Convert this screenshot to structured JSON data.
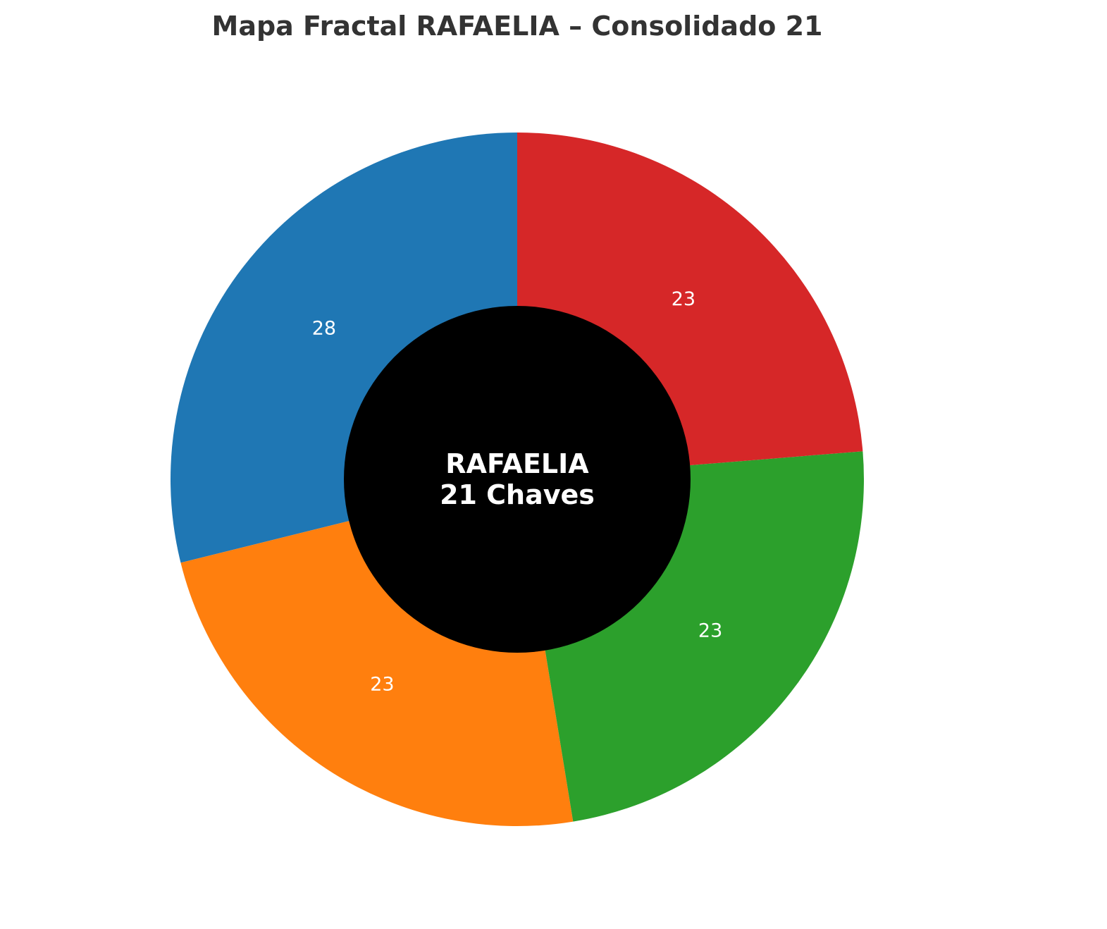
{
  "chart_data": {
    "type": "pie",
    "title": "Mapa Fractal RAFAELIA – Consolidado 21",
    "start_angle_deg": 90,
    "direction": "counterclockwise",
    "donut": true,
    "slices": [
      {
        "value": 28,
        "label": "28",
        "color": "#1f77b4"
      },
      {
        "value": 23,
        "label": "23",
        "color": "#ff7f0e"
      },
      {
        "value": 23,
        "label": "23",
        "color": "#2ca02c"
      },
      {
        "value": 23,
        "label": "23",
        "color": "#d62728"
      }
    ],
    "center_hole_color": "#000000",
    "center_text": [
      "RAFAELIA",
      "21 Chaves"
    ]
  }
}
